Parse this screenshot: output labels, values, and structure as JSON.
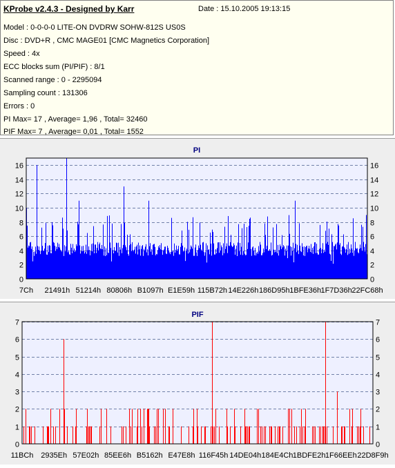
{
  "info": {
    "title": "KProbe v2.4.3 - Designed by Karr",
    "date": "Date : 15.10.2005 19:13:15",
    "lines": [
      "Model : 0-0-0-0 LITE-ON DVDRW SOHW-812S  US0S",
      "Disc : DVD+R , CMC MAGE01 [CMC Magnetics Corporation]",
      "Speed : 4x",
      "ECC blocks sum (PI/PIF) : 8/1",
      "Scanned range : 0 - 2295094",
      "Sampling count : 131306",
      "Errors : 0",
      "PI Max= 17 , Average= 1,96 , Total= 32460",
      "PIF Max= 7 , Average= 0,01 , Total= 1552"
    ]
  },
  "chart_data": [
    {
      "type": "bar",
      "title": "PI",
      "color": "#0000ff",
      "ylim": [
        0,
        17
      ],
      "yticks": [
        0,
        2,
        4,
        6,
        8,
        10,
        12,
        14,
        16
      ],
      "xticks": [
        "7Ch",
        "21491h",
        "51214h",
        "80806h",
        "B1097h",
        "E1E59h",
        "115B72h",
        "14E226h",
        "186D95h",
        "1BFE36h",
        "1F7D36h",
        "22FC68h"
      ],
      "grid": true,
      "max": 17,
      "average": 1.96,
      "peaks": [
        {
          "pos": 0.0,
          "value": 10
        },
        {
          "pos": 0.03,
          "value": 16
        },
        {
          "pos": 0.118,
          "value": 17
        },
        {
          "pos": 0.155,
          "value": 11
        },
        {
          "pos": 0.285,
          "value": 13
        },
        {
          "pos": 0.36,
          "value": 11
        },
        {
          "pos": 0.79,
          "value": 11
        }
      ]
    },
    {
      "type": "bar",
      "title": "PIF",
      "color": "#ff0000",
      "ylim": [
        0,
        7
      ],
      "yticks": [
        0,
        1,
        2,
        3,
        4,
        5,
        6,
        7
      ],
      "xticks": [
        "11BCh",
        "2935Eh",
        "57E02h",
        "85EE6h",
        "B5162h",
        "E47E8h",
        "116F45h",
        "14DE04h",
        "184E4Ch",
        "1BDFE2h",
        "1F66EEh",
        "22D8F9h"
      ],
      "grid": true,
      "max": 7,
      "average": 0.01,
      "peaks": [
        {
          "pos": 0.118,
          "value": 6
        },
        {
          "pos": 0.542,
          "value": 7
        },
        {
          "pos": 0.866,
          "value": 7
        },
        {
          "pos": 0.9,
          "value": 3
        }
      ]
    }
  ]
}
